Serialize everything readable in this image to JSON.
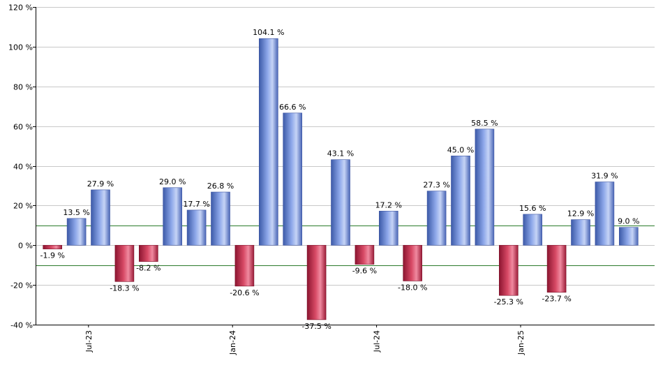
{
  "chart_data": {
    "type": "bar",
    "ylim": [
      -40,
      120
    ],
    "y_ticks": [
      -40,
      -20,
      0,
      20,
      40,
      60,
      80,
      100,
      120
    ],
    "y_tick_suffix": " %",
    "grid": true,
    "reference_lines": [
      10,
      -10
    ],
    "x_tick_labels": [
      {
        "after_bar": 1,
        "label": "Jul-23"
      },
      {
        "after_bar": 7,
        "label": "Jan-24"
      },
      {
        "after_bar": 13,
        "label": "Jul-24"
      },
      {
        "after_bar": 19,
        "label": "Jan-25"
      }
    ],
    "values": [
      -1.9,
      13.5,
      27.9,
      -18.3,
      -8.2,
      29.0,
      17.7,
      26.8,
      -20.6,
      104.1,
      66.6,
      -37.5,
      43.1,
      -9.6,
      17.2,
      -18.0,
      27.3,
      45.0,
      58.5,
      -25.3,
      15.6,
      -23.7,
      12.9,
      31.9,
      9.0
    ],
    "labels": [
      "-1.9 %",
      "13.5 %",
      "27.9 %",
      "-18.3 %",
      "-8.2 %",
      "29.0 %",
      "17.7 %",
      "26.8 %",
      "-20.6 %",
      "104.1 %",
      "66.6 %",
      "-37.5 %",
      "43.1 %",
      "-9.6 %",
      "17.2 %",
      "-18.0 %",
      "27.3 %",
      "45.0 %",
      "58.5 %",
      "-25.3 %",
      "15.6 %",
      "-23.7 %",
      "12.9 %",
      "31.9 %",
      "9.0 %"
    ],
    "colors": {
      "positive": "#6f8fd8",
      "negative": "#c8304c",
      "reference_line": "#2a7a2a",
      "grid": "#c8c8c8",
      "axis": "#000000"
    }
  }
}
